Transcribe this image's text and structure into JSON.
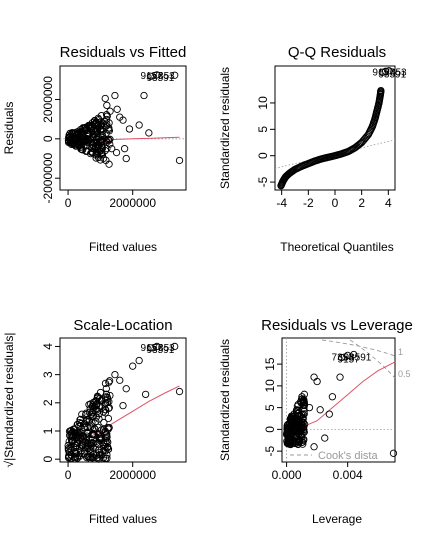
{
  "chart_data": [
    {
      "type": "scatter",
      "title": "Residuals vs Fitted",
      "xlabel": "Fitted values",
      "ylabel": "Residuals",
      "xlim": [
        -250000,
        3650000
      ],
      "ylim": [
        -2600000,
        3700000
      ],
      "xticks": [
        0,
        2000000
      ],
      "xtick_labels": [
        "0",
        "2000000"
      ],
      "yticks": [
        -2000000,
        0,
        2000000
      ],
      "ytick_labels": [
        "-2000000",
        "0",
        "2000000"
      ],
      "cloud": {
        "x_min": 0,
        "x_max": 1300000,
        "y_center": 0,
        "y_spread_low": 700000,
        "y_spread_high": 1400000,
        "count": 220
      },
      "outliers": [
        {
          "x": 1150000,
          "y": 2050000
        },
        {
          "x": 1200000,
          "y": 1700000
        },
        {
          "x": 1300000,
          "y": 1400000
        },
        {
          "x": 1450000,
          "y": 2200000
        },
        {
          "x": 1520000,
          "y": 1500000
        },
        {
          "x": 1600000,
          "y": 1100000
        },
        {
          "x": 1700000,
          "y": 950000
        },
        {
          "x": 1350000,
          "y": -500000
        },
        {
          "x": 1500000,
          "y": -700000
        },
        {
          "x": 1750000,
          "y": -500000
        },
        {
          "x": 1900000,
          "y": 500000
        },
        {
          "x": 2200000,
          "y": 700000
        },
        {
          "x": 2500000,
          "y": 300000
        },
        {
          "x": 1800000,
          "y": -1000000
        },
        {
          "x": 2350000,
          "y": 2200000
        },
        {
          "x": 3450000,
          "y": -1100000
        }
      ],
      "labelled": [
        {
          "x": 2550000,
          "y": 3180000
        },
        {
          "x": 2750000,
          "y": 3250000
        },
        {
          "x": 3300000,
          "y": 3230000
        }
      ],
      "point_labels": [
        "9157",
        "93591",
        "7353"
      ],
      "smooth": [
        [
          0,
          -50000
        ],
        [
          500000,
          -80000
        ],
        [
          1000000,
          -80000
        ],
        [
          1500000,
          -30000
        ],
        [
          2000000,
          0
        ],
        [
          2500000,
          20000
        ],
        [
          3000000,
          50000
        ],
        [
          3450000,
          80000
        ]
      ]
    },
    {
      "type": "scatter",
      "title": "Q-Q Residuals",
      "xlabel": "Theoretical Quantiles",
      "ylabel": "Standardized residuals",
      "xlim": [
        -4.5,
        4.5
      ],
      "ylim": [
        -6.5,
        17
      ],
      "xticks": [
        -4,
        -2,
        0,
        2,
        4
      ],
      "xtick_labels": [
        "-4",
        "-2",
        "0",
        "2",
        "4"
      ],
      "yticks": [
        -5,
        0,
        5,
        10
      ],
      "ytick_labels": [
        "-5",
        "0",
        "5",
        "10"
      ],
      "qq_curve": [
        [
          -4.05,
          -5.7
        ],
        [
          -3.9,
          -4.8
        ],
        [
          -3.7,
          -4.0
        ],
        [
          -3.4,
          -3.3
        ],
        [
          -3.0,
          -2.6
        ],
        [
          -2.5,
          -2.0
        ],
        [
          -2.0,
          -1.5
        ],
        [
          -1.5,
          -1.0
        ],
        [
          -1.0,
          -0.6
        ],
        [
          -0.5,
          -0.3
        ],
        [
          0.0,
          0.0
        ],
        [
          0.5,
          0.35
        ],
        [
          1.0,
          0.8
        ],
        [
          1.5,
          1.5
        ],
        [
          2.0,
          2.5
        ],
        [
          2.5,
          4.0
        ],
        [
          2.8,
          5.5
        ],
        [
          3.0,
          7.0
        ],
        [
          3.15,
          8.5
        ],
        [
          3.3,
          10.0
        ],
        [
          3.4,
          11.5
        ],
        [
          3.45,
          12.5
        ]
      ],
      "outliers": [
        {
          "x": 3.55,
          "y": 15.8
        },
        {
          "x": 3.8,
          "y": 16.0
        },
        {
          "x": 4.05,
          "y": 16.1
        }
      ],
      "point_labels": [
        "9157",
        "93591",
        "7353"
      ],
      "refline": [
        [
          -4.5,
          -2.4
        ],
        [
          4.5,
          3.0
        ]
      ]
    },
    {
      "type": "scatter",
      "title": "Scale-Location",
      "xlabel": "Fitted values",
      "ylabel": "√|Standardized residuals|",
      "xlim": [
        -250000,
        3650000
      ],
      "ylim": [
        -0.1,
        4.3
      ],
      "xticks": [
        0,
        2000000
      ],
      "xtick_labels": [
        "0",
        "2000000"
      ],
      "yticks": [
        0,
        1,
        2,
        3,
        4
      ],
      "ytick_labels": [
        "0",
        "1",
        "2",
        "3",
        "4"
      ],
      "cloud": {
        "x_min": 0,
        "x_max": 1300000,
        "y_low": 0.0,
        "y_high": 2.9,
        "count": 240
      },
      "outliers": [
        {
          "x": 1450000,
          "y": 3.0
        },
        {
          "x": 1600000,
          "y": 2.8
        },
        {
          "x": 1800000,
          "y": 2.5
        },
        {
          "x": 2000000,
          "y": 3.3
        },
        {
          "x": 2200000,
          "y": 3.5
        },
        {
          "x": 2400000,
          "y": 2.3
        },
        {
          "x": 1700000,
          "y": 1.9
        },
        {
          "x": 3450000,
          "y": 2.4
        }
      ],
      "labelled": [
        {
          "x": 2550000,
          "y": 3.95
        },
        {
          "x": 2750000,
          "y": 4.0
        },
        {
          "x": 3300000,
          "y": 4.0
        }
      ],
      "point_labels": [
        "9157",
        "93591",
        "7353"
      ],
      "smooth": [
        [
          0,
          0.55
        ],
        [
          300000,
          0.65
        ],
        [
          700000,
          0.8
        ],
        [
          1000000,
          1.0
        ],
        [
          1500000,
          1.35
        ],
        [
          2000000,
          1.7
        ],
        [
          2500000,
          2.05
        ],
        [
          3000000,
          2.35
        ],
        [
          3450000,
          2.6
        ]
      ]
    },
    {
      "type": "scatter",
      "title": "Residuals vs Leverage",
      "xlabel": "Leverage",
      "ylabel": "Standardized residuals",
      "xlim": [
        -0.0003,
        0.0071
      ],
      "ylim": [
        -7.5,
        21
      ],
      "xticks": [
        0.0,
        0.004
      ],
      "xtick_labels": [
        "0.000",
        "0.004"
      ],
      "yticks": [
        -5,
        0,
        5,
        10,
        15
      ],
      "ytick_labels": [
        "-5",
        "0",
        "5",
        "10",
        "15"
      ],
      "cloud": {
        "x_min": 0.0,
        "x_max": 0.0012,
        "y_low": -3.5,
        "y_high": 9.0,
        "count": 200
      },
      "outliers": [
        {
          "x": 0.0015,
          "y": 5.0
        },
        {
          "x": 0.0018,
          "y": 12.0
        },
        {
          "x": 0.002,
          "y": 11.0
        },
        {
          "x": 0.0022,
          "y": 4.5
        },
        {
          "x": 0.0025,
          "y": -2.0
        },
        {
          "x": 0.003,
          "y": 7.5
        },
        {
          "x": 0.0028,
          "y": 3.5
        },
        {
          "x": 0.0035,
          "y": 12.0
        },
        {
          "x": 0.0018,
          "y": -4.0
        },
        {
          "x": 0.007,
          "y": -5.5
        }
      ],
      "labelled": [
        {
          "x": 0.0036,
          "y": 16.5
        },
        {
          "x": 0.004,
          "y": 17.0
        },
        {
          "x": 0.0044,
          "y": 17.2
        }
      ],
      "point_labels": [
        "7353",
        "9157",
        "93591"
      ],
      "smooth": [
        [
          0.0,
          0.0
        ],
        [
          0.001,
          0.5
        ],
        [
          0.002,
          2.0
        ],
        [
          0.003,
          5.0
        ],
        [
          0.004,
          8.0
        ],
        [
          0.005,
          11.0
        ],
        [
          0.006,
          13.5
        ],
        [
          0.0071,
          15.5
        ]
      ],
      "contour_labels": [
        "1",
        "0.5"
      ],
      "legend": "Cook's distance",
      "legend_visible_text": "Cook's dista"
    }
  ]
}
